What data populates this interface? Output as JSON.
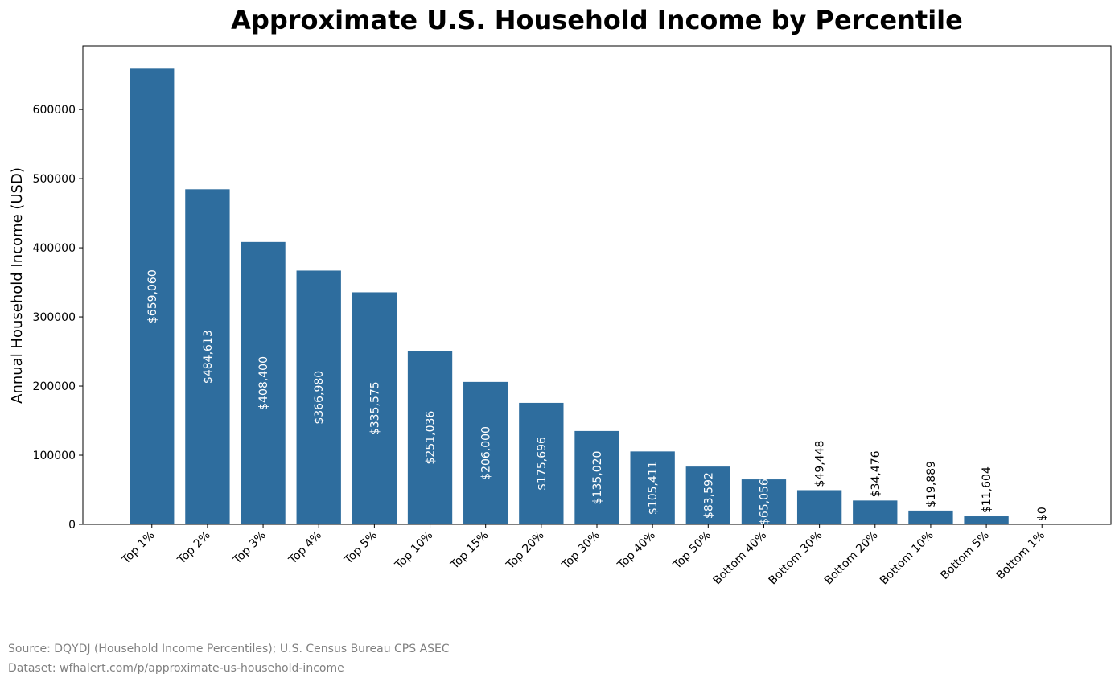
{
  "chart_data": {
    "type": "bar",
    "title": "Approximate U.S. Household Income by Percentile",
    "ylabel": "Annual Household Income (USD)",
    "categories": [
      "Top 1%",
      "Top 2%",
      "Top 3%",
      "Top 4%",
      "Top 5%",
      "Top 10%",
      "Top 15%",
      "Top 20%",
      "Top 30%",
      "Top 40%",
      "Top 50%",
      "Bottom 40%",
      "Bottom 30%",
      "Bottom 20%",
      "Bottom 10%",
      "Bottom 5%",
      "Bottom 1%"
    ],
    "values": [
      659060,
      484613,
      408400,
      366980,
      335575,
      251036,
      206000,
      175696,
      135020,
      105411,
      83592,
      65056,
      49448,
      34476,
      19889,
      11604,
      0
    ],
    "value_labels": [
      "$659,060",
      "$484,613",
      "$408,400",
      "$366,980",
      "$335,575",
      "$251,036",
      "$206,000",
      "$175,696",
      "$135,020",
      "$105,411",
      "$83,592",
      "$65,056",
      "$49,448",
      "$34,476",
      "$19,889",
      "$11,604",
      "$0"
    ],
    "color": "#2e6d9e",
    "ylim": [
      0,
      692000
    ],
    "yticks": [
      0,
      100000,
      200000,
      300000,
      400000,
      500000,
      600000
    ],
    "grid": false,
    "source": "Source: DQYDJ (Household Income Percentiles); U.S. Census Bureau CPS ASEC",
    "dataset": "Dataset: wfhalert.com/p/approximate-us-household-income"
  }
}
